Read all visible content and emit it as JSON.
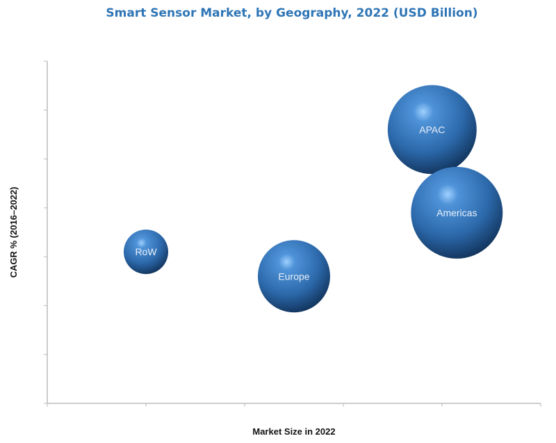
{
  "chart_data": {
    "type": "scatter",
    "subtype": "bubble",
    "title": "Smart Sensor Market, by Geography, 2022 (USD Billion)",
    "xlabel": "Market Size in 2022",
    "ylabel": "CAGR % (2016–2022)",
    "tick_labels_shown": false,
    "x_ticks": 5,
    "y_ticks": 7,
    "xlim": [
      0,
      5
    ],
    "ylim": [
      0,
      7
    ],
    "grid": false,
    "legend": "none",
    "bubble_color": "#2e6db4",
    "points": [
      {
        "label": "RoW",
        "x": 1.0,
        "y": 3.1,
        "size": 32
      },
      {
        "label": "Europe",
        "x": 2.5,
        "y": 2.6,
        "size": 52
      },
      {
        "label": "APAC",
        "x": 3.9,
        "y": 5.6,
        "size": 64
      },
      {
        "label": "Americas",
        "x": 4.15,
        "y": 3.9,
        "size": 66
      }
    ]
  }
}
